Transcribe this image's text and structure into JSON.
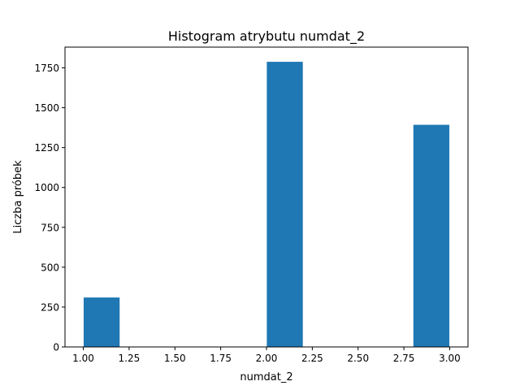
{
  "chart_data": {
    "type": "bar",
    "title": "Histogram atrybutu numdat_2",
    "xlabel": "numdat_2",
    "ylabel": "Liczba próbek",
    "xlim": [
      0.9,
      3.1
    ],
    "ylim": [
      0,
      1880
    ],
    "xticks": [
      1.0,
      1.25,
      1.5,
      1.75,
      2.0,
      2.25,
      2.5,
      2.75,
      3.0
    ],
    "xtick_labels": [
      "1.00",
      "1.25",
      "1.50",
      "1.75",
      "2.00",
      "2.25",
      "2.50",
      "2.75",
      "3.00"
    ],
    "yticks": [
      0,
      250,
      500,
      750,
      1000,
      1250,
      1500,
      1750
    ],
    "ytick_labels": [
      "0",
      "250",
      "500",
      "750",
      "1000",
      "1250",
      "1500",
      "1750"
    ],
    "bins": [
      {
        "start": 1.0,
        "end": 1.2,
        "count": 312
      },
      {
        "start": 2.0,
        "end": 2.2,
        "count": 1790
      },
      {
        "start": 2.8,
        "end": 3.0,
        "count": 1395
      }
    ],
    "colors": {
      "bar": "#1f77b4",
      "edge": "#ffffff"
    }
  }
}
